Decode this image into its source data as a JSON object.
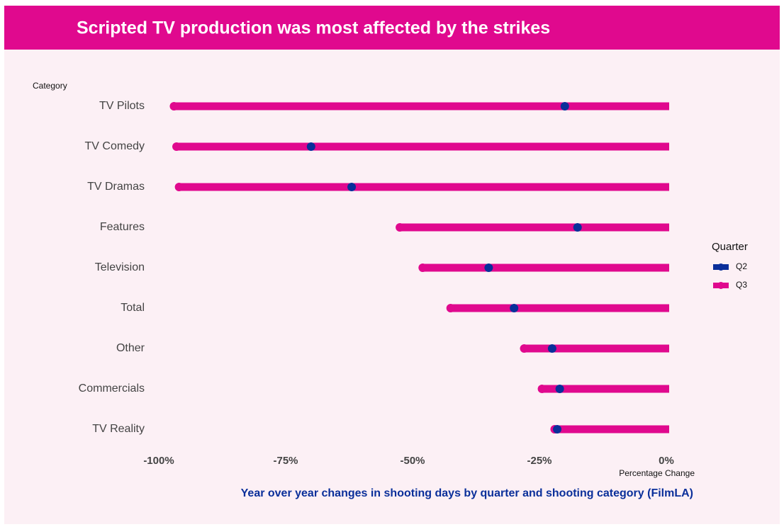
{
  "chart_data": {
    "type": "dumbbell",
    "title": "Scripted TV production was most affected by the strikes",
    "caption": "Year over year changes in shooting days by quarter and shooting category (FilmLA)",
    "y_label": "Category",
    "x_label": "Percentage Change",
    "legend_title": "Quarter",
    "categories": [
      "TV Pilots",
      "TV Comedy",
      "TV Dramas",
      "Features",
      "Television",
      "Total",
      "Other",
      "Commercials",
      "TV Reality"
    ],
    "series": [
      {
        "name": "Q2",
        "color": "#0a2f9a",
        "values": [
          -20,
          -70,
          -62,
          -17.5,
          -35,
          -30,
          -22.5,
          -21,
          -21.5
        ]
      },
      {
        "name": "Q3",
        "color": "#e0098e",
        "values": [
          -97,
          -96.5,
          -96,
          -52.5,
          -48,
          -42.5,
          -28,
          -24.5,
          -22
        ]
      }
    ],
    "xlim": [
      -100,
      0
    ],
    "xticks": [
      {
        "value": -100,
        "label": "-100%"
      },
      {
        "value": -75,
        "label": "-75%"
      },
      {
        "value": -50,
        "label": "-50%"
      },
      {
        "value": -25,
        "label": "-25%"
      },
      {
        "value": 0,
        "label": "0%"
      }
    ],
    "legend": "right"
  }
}
